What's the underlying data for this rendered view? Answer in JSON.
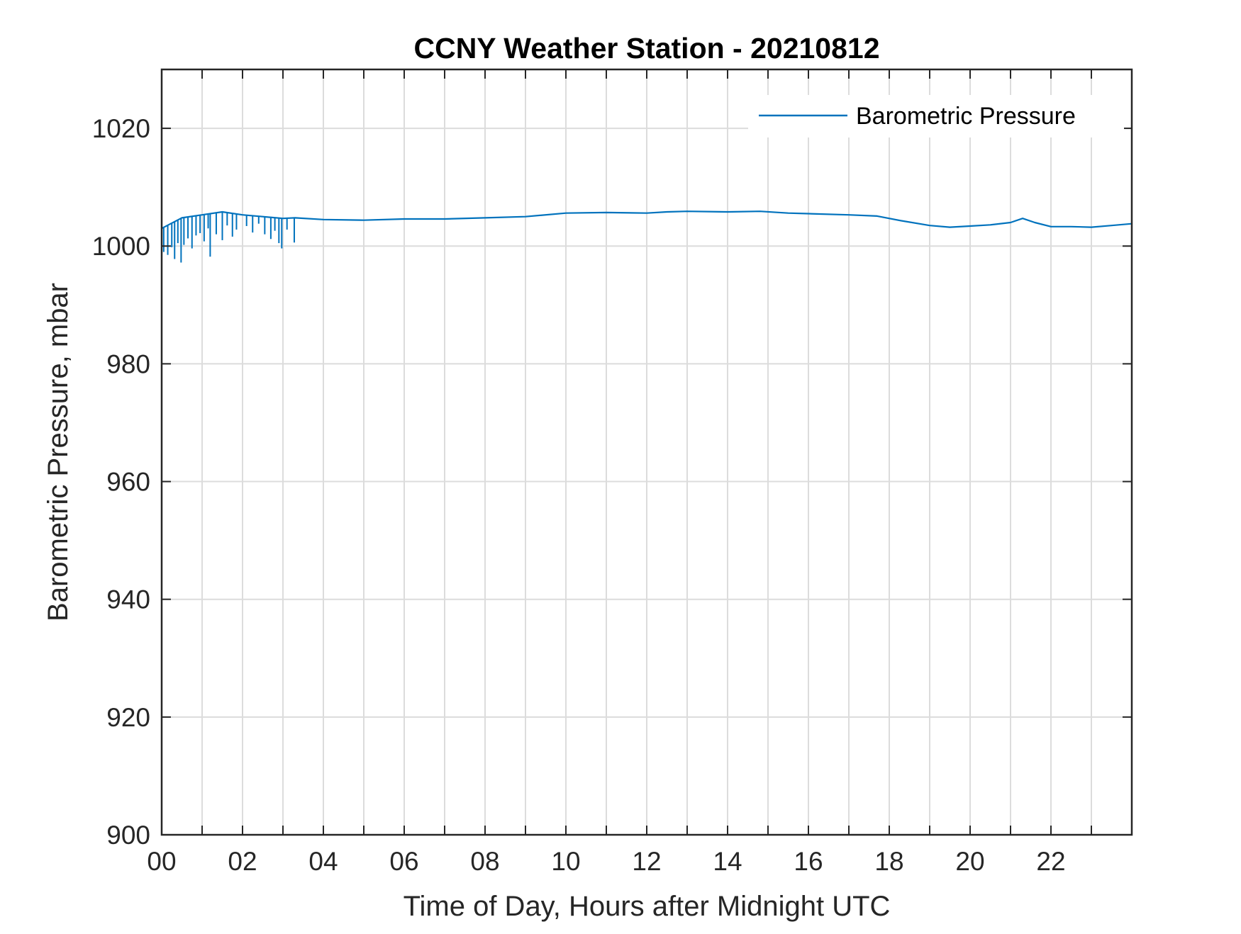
{
  "chart_data": {
    "type": "line",
    "title": "CCNY Weather Station - 20210812",
    "xlabel": "Time of Day, Hours after Midnight UTC",
    "ylabel": "Barometric Pressure, mbar",
    "xlim": [
      0,
      24
    ],
    "ylim": [
      900,
      1030
    ],
    "xticks": [
      0,
      2,
      4,
      6,
      8,
      10,
      12,
      14,
      16,
      18,
      20,
      22
    ],
    "xtick_labels": [
      "00",
      "02",
      "04",
      "06",
      "08",
      "10",
      "12",
      "14",
      "16",
      "18",
      "20",
      "22"
    ],
    "yticks": [
      900,
      920,
      940,
      960,
      980,
      1000,
      1020
    ],
    "ytick_labels": [
      "900",
      "920",
      "940",
      "960",
      "980",
      "1000",
      "1020"
    ],
    "grid": true,
    "legend_position": "top-right",
    "series": [
      {
        "name": "Barometric Pressure",
        "color": "#0072BD",
        "x": [
          0.0,
          0.5,
          1.0,
          1.5,
          2.0,
          2.5,
          3.0,
          3.3,
          4.0,
          5.0,
          6.0,
          7.0,
          8.0,
          9.0,
          10.0,
          11.0,
          12.0,
          12.5,
          13.0,
          14.0,
          14.8,
          15.5,
          16.0,
          17.0,
          17.7,
          18.3,
          19.0,
          19.5,
          20.0,
          20.5,
          21.0,
          21.3,
          21.6,
          22.0,
          22.5,
          23.0,
          23.5,
          24.0
        ],
        "y": [
          1003.0,
          1004.8,
          1005.3,
          1005.8,
          1005.3,
          1005.0,
          1004.7,
          1004.8,
          1004.5,
          1004.4,
          1004.6,
          1004.6,
          1004.8,
          1005.0,
          1005.6,
          1005.7,
          1005.6,
          1005.8,
          1005.9,
          1005.8,
          1005.9,
          1005.6,
          1005.5,
          1005.3,
          1005.1,
          1004.3,
          1003.5,
          1003.2,
          1003.4,
          1003.6,
          1004.0,
          1004.7,
          1004.0,
          1003.3,
          1003.3,
          1003.2,
          1003.5,
          1003.8
        ],
        "dropouts": [
          {
            "x": 0.05,
            "y": 999.0
          },
          {
            "x": 0.15,
            "y": 998.5
          },
          {
            "x": 0.25,
            "y": 999.8
          },
          {
            "x": 0.32,
            "y": 997.8
          },
          {
            "x": 0.4,
            "y": 1000.5
          },
          {
            "x": 0.48,
            "y": 997.2
          },
          {
            "x": 0.55,
            "y": 1000.2
          },
          {
            "x": 0.65,
            "y": 1001.3
          },
          {
            "x": 0.75,
            "y": 999.6
          },
          {
            "x": 0.85,
            "y": 1001.8
          },
          {
            "x": 0.95,
            "y": 1002.2
          },
          {
            "x": 1.05,
            "y": 1000.8
          },
          {
            "x": 1.15,
            "y": 1003.0
          },
          {
            "x": 1.2,
            "y": 998.2
          },
          {
            "x": 1.35,
            "y": 1002.0
          },
          {
            "x": 1.5,
            "y": 1001.0
          },
          {
            "x": 1.62,
            "y": 1003.5
          },
          {
            "x": 1.75,
            "y": 1001.6
          },
          {
            "x": 1.85,
            "y": 1002.8
          },
          {
            "x": 2.1,
            "y": 1003.4
          },
          {
            "x": 2.25,
            "y": 1002.3
          },
          {
            "x": 2.4,
            "y": 1003.8
          },
          {
            "x": 2.55,
            "y": 1002.0
          },
          {
            "x": 2.7,
            "y": 1001.2
          },
          {
            "x": 2.8,
            "y": 1002.6
          },
          {
            "x": 2.9,
            "y": 1000.5
          },
          {
            "x": 2.97,
            "y": 999.6
          },
          {
            "x": 3.1,
            "y": 1002.8
          },
          {
            "x": 3.28,
            "y": 1000.6
          }
        ]
      }
    ]
  }
}
